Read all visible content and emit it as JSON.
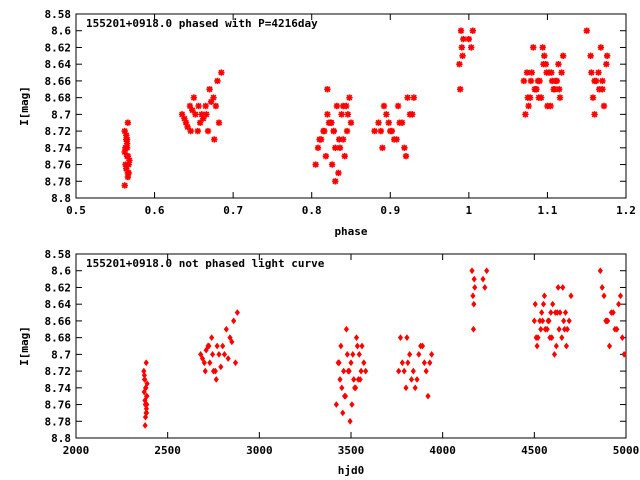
{
  "chart_data": [
    {
      "type": "scatter",
      "title": "155201+0918.0 phased with P=4216day",
      "xlabel": "phase",
      "ylabel": "I[mag]",
      "xlim": [
        0.5,
        1.2
      ],
      "ylim": [
        8.58,
        8.8
      ],
      "y_reversed": true,
      "xticks": [
        "0.5",
        "0.6",
        "0.7",
        "0.8",
        "0.9",
        "1",
        "1.1",
        "1.2"
      ],
      "yticks": [
        "8.58",
        "8.6",
        "8.62",
        "8.64",
        "8.66",
        "8.68",
        "8.7",
        "8.72",
        "8.74",
        "8.76",
        "8.78",
        "8.8"
      ],
      "marker": "star",
      "color": "#ff0000",
      "grid": false,
      "x": [
        0.562,
        0.564,
        0.565,
        0.566,
        0.563,
        0.567,
        0.562,
        0.565,
        0.568,
        0.564,
        0.566,
        0.563,
        0.565,
        0.567,
        0.562,
        0.566,
        0.564,
        0.565,
        0.563,
        0.566,
        0.635,
        0.64,
        0.645,
        0.65,
        0.655,
        0.66,
        0.665,
        0.67,
        0.675,
        0.68,
        0.685,
        0.638,
        0.648,
        0.658,
        0.668,
        0.678,
        0.642,
        0.652,
        0.662,
        0.672,
        0.682,
        0.646,
        0.656,
        0.666,
        0.676,
        0.805,
        0.81,
        0.815,
        0.82,
        0.825,
        0.83,
        0.835,
        0.84,
        0.845,
        0.85,
        0.808,
        0.818,
        0.828,
        0.838,
        0.848,
        0.812,
        0.822,
        0.832,
        0.842,
        0.816,
        0.826,
        0.836,
        0.846,
        0.82,
        0.83,
        0.84,
        0.824,
        0.834,
        0.844,
        0.828,
        0.88,
        0.885,
        0.89,
        0.895,
        0.9,
        0.905,
        0.91,
        0.915,
        0.92,
        0.925,
        0.93,
        0.888,
        0.898,
        0.908,
        0.918,
        0.928,
        0.892,
        0.902,
        0.912,
        0.922,
        0.99,
        0.992,
        0.988,
        0.991,
        0.989,
        0.993,
        1.0,
        1.005,
        1.003,
        1.07,
        1.075,
        1.08,
        1.085,
        1.09,
        1.095,
        1.1,
        1.105,
        1.11,
        1.115,
        1.12,
        1.078,
        1.088,
        1.098,
        1.108,
        1.118,
        1.072,
        1.082,
        1.092,
        1.102,
        1.112,
        1.076,
        1.086,
        1.096,
        1.106,
        1.116,
        1.074,
        1.084,
        1.094,
        1.104,
        1.114,
        1.079,
        1.089,
        1.099,
        1.109,
        1.15,
        1.155,
        1.16,
        1.165,
        1.17,
        1.175,
        1.158,
        1.168,
        1.162,
        1.172,
        1.156,
        1.166,
        1.176,
        1.16,
        1.17
      ],
      "y": [
        8.72,
        8.73,
        8.74,
        8.75,
        8.76,
        8.77,
        8.745,
        8.735,
        8.755,
        8.765,
        8.775,
        8.74,
        8.73,
        8.76,
        8.785,
        8.71,
        8.725,
        8.75,
        8.74,
        8.77,
        8.7,
        8.71,
        8.69,
        8.68,
        8.72,
        8.7,
        8.69,
        8.67,
        8.68,
        8.66,
        8.65,
        8.705,
        8.695,
        8.71,
        8.72,
        8.69,
        8.715,
        8.7,
        8.705,
        8.685,
        8.71,
        8.72,
        8.69,
        8.7,
        8.73,
        8.76,
        8.73,
        8.72,
        8.7,
        8.71,
        8.74,
        8.73,
        8.69,
        8.72,
        8.71,
        8.74,
        8.75,
        8.72,
        8.7,
        8.68,
        8.73,
        8.71,
        8.69,
        8.75,
        8.72,
        8.76,
        8.74,
        8.7,
        8.67,
        8.78,
        8.73,
        8.71,
        8.77,
        8.69,
        8.72,
        8.72,
        8.71,
        8.74,
        8.7,
        8.72,
        8.73,
        8.69,
        8.71,
        8.75,
        8.7,
        8.68,
        8.72,
        8.71,
        8.73,
        8.74,
        8.7,
        8.69,
        8.72,
        8.71,
        8.68,
        8.6,
        8.63,
        8.64,
        8.62,
        8.67,
        8.61,
        8.61,
        8.6,
        8.62,
        8.66,
        8.68,
        8.65,
        8.67,
        8.66,
        8.64,
        8.69,
        8.65,
        8.66,
        8.67,
        8.63,
        8.68,
        8.66,
        8.64,
        8.67,
        8.65,
        8.7,
        8.62,
        8.68,
        8.65,
        8.66,
        8.69,
        8.67,
        8.63,
        8.66,
        8.68,
        8.65,
        8.67,
        8.62,
        8.69,
        8.64,
        8.66,
        8.68,
        8.65,
        8.67,
        8.6,
        8.63,
        8.66,
        8.65,
        8.67,
        8.64,
        8.68,
        8.62,
        8.66,
        8.69,
        8.65,
        8.67,
        8.63,
        8.7,
        8.66
      ]
    },
    {
      "type": "scatter",
      "title": "155201+0918.0 not phased light curve",
      "xlabel": "hjd0",
      "ylabel": "I[mag]",
      "xlim": [
        2000,
        5000
      ],
      "ylim": [
        8.58,
        8.8
      ],
      "y_reversed": true,
      "xticks": [
        "2000",
        "2500",
        "3000",
        "3500",
        "4000",
        "4500",
        "5000"
      ],
      "yticks": [
        "8.58",
        "8.6",
        "8.62",
        "8.64",
        "8.66",
        "8.68",
        "8.7",
        "8.72",
        "8.74",
        "8.76",
        "8.78",
        "8.8"
      ],
      "marker": "diamond",
      "color": "#ff0000",
      "grid": false,
      "x": [
        2370,
        2375,
        2380,
        2385,
        2378,
        2382,
        2372,
        2388,
        2376,
        2384,
        2379,
        2381,
        2374,
        2386,
        2377,
        2383,
        2373,
        2387,
        2380,
        2385,
        2680,
        2700,
        2720,
        2740,
        2760,
        2780,
        2800,
        2820,
        2840,
        2860,
        2880,
        2690,
        2710,
        2730,
        2750,
        2770,
        2790,
        2810,
        2830,
        2850,
        2870,
        2705,
        2725,
        2745,
        2765,
        3420,
        3440,
        3460,
        3480,
        3500,
        3520,
        3540,
        3560,
        3580,
        3430,
        3450,
        3470,
        3490,
        3510,
        3530,
        3550,
        3570,
        3445,
        3465,
        3485,
        3505,
        3525,
        3545,
        3475,
        3495,
        3515,
        3435,
        3455,
        3535,
        3555,
        3760,
        3780,
        3800,
        3820,
        3840,
        3860,
        3880,
        3900,
        3920,
        3940,
        3770,
        3790,
        3810,
        3830,
        3850,
        3870,
        3890,
        3910,
        3930,
        3805,
        4160,
        4165,
        4170,
        4175,
        4168,
        4172,
        4220,
        4240,
        4230,
        4500,
        4520,
        4540,
        4560,
        4580,
        4600,
        4620,
        4640,
        4660,
        4680,
        4700,
        4510,
        4530,
        4550,
        4570,
        4590,
        4610,
        4630,
        4650,
        4670,
        4690,
        4515,
        4535,
        4555,
        4575,
        4595,
        4615,
        4635,
        4655,
        4675,
        4505,
        4545,
        4585,
        4625,
        4665,
        4860,
        4880,
        4900,
        4920,
        4940,
        4960,
        4980,
        4870,
        4890,
        4910,
        4930,
        4950,
        4970,
        4990,
        4895
      ],
      "y": [
        8.72,
        8.73,
        8.74,
        8.75,
        8.76,
        8.77,
        8.745,
        8.735,
        8.755,
        8.765,
        8.775,
        8.74,
        8.73,
        8.76,
        8.785,
        8.71,
        8.725,
        8.75,
        8.74,
        8.77,
        8.7,
        8.71,
        8.69,
        8.68,
        8.72,
        8.7,
        8.69,
        8.67,
        8.68,
        8.66,
        8.65,
        8.705,
        8.695,
        8.71,
        8.72,
        8.69,
        8.715,
        8.7,
        8.705,
        8.685,
        8.71,
        8.72,
        8.69,
        8.7,
        8.73,
        8.76,
        8.73,
        8.72,
        8.7,
        8.71,
        8.74,
        8.73,
        8.69,
        8.72,
        8.71,
        8.74,
        8.75,
        8.72,
        8.7,
        8.68,
        8.73,
        8.71,
        8.69,
        8.75,
        8.72,
        8.76,
        8.74,
        8.7,
        8.67,
        8.78,
        8.73,
        8.71,
        8.77,
        8.69,
        8.72,
        8.72,
        8.71,
        8.74,
        8.7,
        8.72,
        8.73,
        8.69,
        8.71,
        8.75,
        8.7,
        8.68,
        8.72,
        8.71,
        8.73,
        8.74,
        8.7,
        8.69,
        8.72,
        8.71,
        8.68,
        8.6,
        8.63,
        8.64,
        8.62,
        8.67,
        8.61,
        8.61,
        8.6,
        8.62,
        8.66,
        8.68,
        8.65,
        8.67,
        8.66,
        8.64,
        8.69,
        8.65,
        8.66,
        8.67,
        8.63,
        8.68,
        8.66,
        8.64,
        8.67,
        8.65,
        8.7,
        8.62,
        8.68,
        8.65,
        8.66,
        8.69,
        8.67,
        8.63,
        8.66,
        8.68,
        8.65,
        8.67,
        8.62,
        8.69,
        8.64,
        8.66,
        8.68,
        8.65,
        8.67,
        8.6,
        8.63,
        8.66,
        8.65,
        8.67,
        8.64,
        8.68,
        8.62,
        8.66,
        8.69,
        8.65,
        8.67,
        8.63,
        8.7,
        8.66
      ]
    }
  ]
}
